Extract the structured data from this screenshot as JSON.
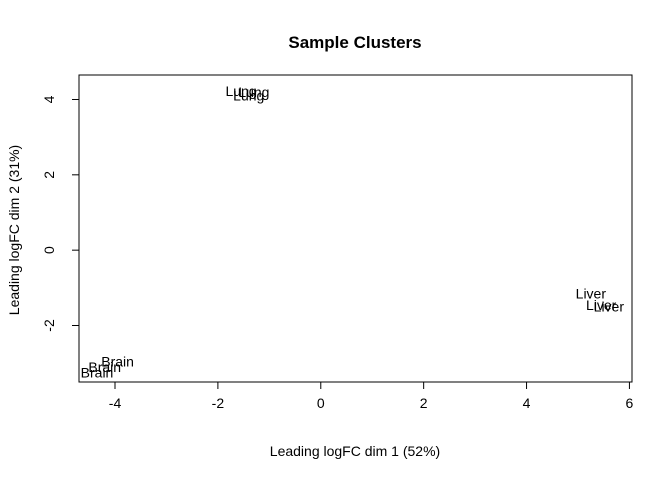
{
  "chart_data": {
    "type": "scatter",
    "title": "Sample Clusters",
    "xlabel": "Leading logFC dim 1 (52%)",
    "ylabel": "Leading logFC dim 2 (31%)",
    "xlim": [
      -4.7,
      6.05
    ],
    "ylim": [
      -3.5,
      4.65
    ],
    "xticks": [
      -4,
      -2,
      0,
      2,
      4,
      6
    ],
    "yticks": [
      -2,
      0,
      2,
      4
    ],
    "grid": false,
    "points": [
      {
        "label": "Lung",
        "x": -1.3,
        "y": 4.2
      },
      {
        "label": "Lung",
        "x": -1.55,
        "y": 4.22
      },
      {
        "label": "Lung",
        "x": -1.4,
        "y": 4.1
      },
      {
        "label": "Liver",
        "x": 5.25,
        "y": -1.15
      },
      {
        "label": "Liver",
        "x": 5.45,
        "y": -1.45
      },
      {
        "label": "Liver",
        "x": 5.6,
        "y": -1.5
      },
      {
        "label": "Brain",
        "x": -3.95,
        "y": -2.95
      },
      {
        "label": "Brain",
        "x": -4.2,
        "y": -3.1
      },
      {
        "label": "Brain",
        "x": -4.35,
        "y": -3.25
      }
    ]
  }
}
